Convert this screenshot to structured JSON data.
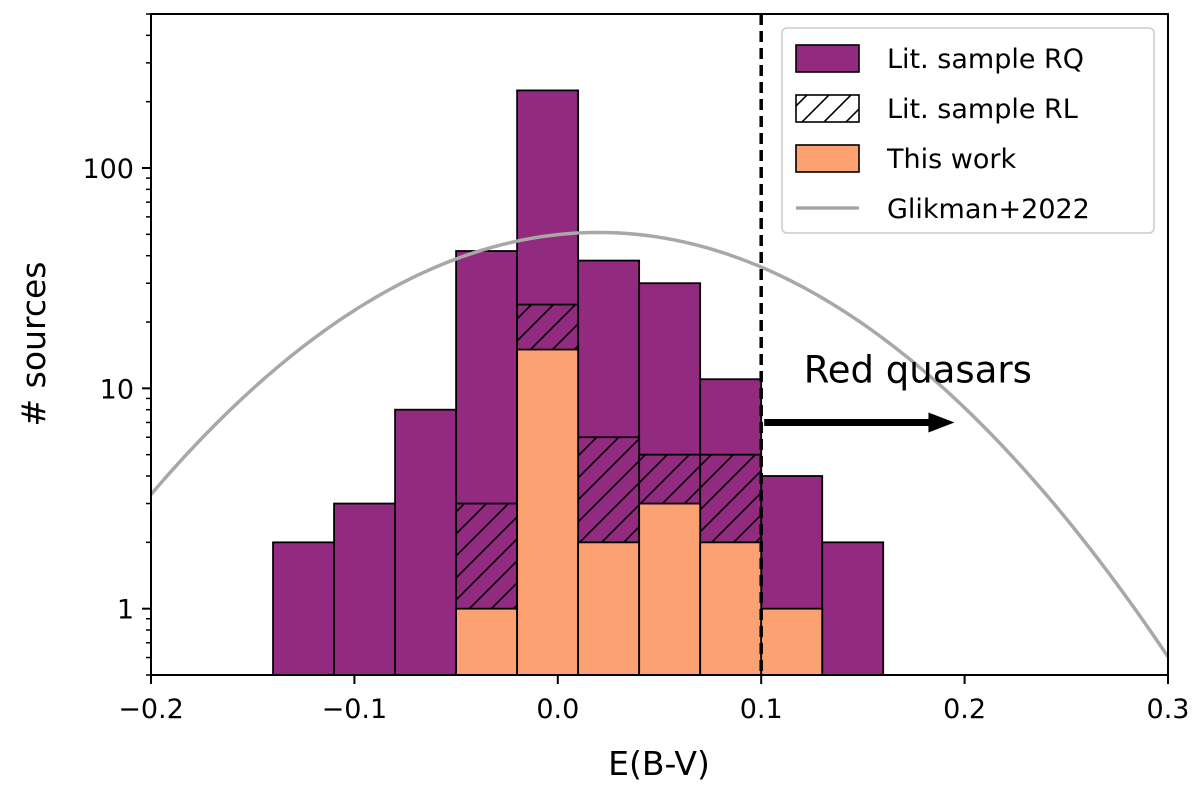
{
  "chart_data": {
    "type": "bar",
    "subtype": "stacked-histogram-log",
    "xlabel": "E(B-V)",
    "ylabel": "# sources",
    "xlim": [
      -0.2,
      0.3
    ],
    "ylim": [
      0.5,
      500
    ],
    "yscale": "log",
    "x_ticks": [
      -0.2,
      -0.1,
      0.0,
      0.1,
      0.2,
      0.3
    ],
    "x_tick_labels": [
      "−0.2",
      "−0.1",
      "0.0",
      "0.1",
      "0.2",
      "0.3"
    ],
    "y_ticks": [
      1,
      10,
      100
    ],
    "y_tick_labels": [
      "1",
      "10",
      "100"
    ],
    "bin_edges": [
      -0.14,
      -0.11,
      -0.08,
      -0.05,
      -0.02,
      0.01,
      0.04,
      0.07,
      0.1,
      0.13,
      0.16
    ],
    "series": [
      {
        "name": "Lit. sample RQ",
        "color": "#922b80",
        "hatch": false,
        "values": [
          2,
          3,
          8,
          42,
          225,
          38,
          30,
          11,
          4,
          2
        ]
      },
      {
        "name": "Lit. sample RL",
        "color": "#922b80",
        "hatch": true,
        "values": [
          null,
          null,
          null,
          3,
          24,
          6,
          5,
          5,
          null,
          null
        ]
      },
      {
        "name": "This work",
        "color": "#fca172",
        "hatch": false,
        "values": [
          null,
          null,
          null,
          1,
          15,
          2,
          3,
          2,
          1,
          null
        ]
      }
    ],
    "curve": {
      "name": "Glikman+2022",
      "color": "#a8a8a8",
      "type": "log-parabola",
      "peak_x": 0.02,
      "peak_y": 51,
      "y_at_x_min": 3.3,
      "x_range": [
        -0.2,
        0.3
      ]
    },
    "threshold": {
      "x": 0.1,
      "style": "dashed"
    },
    "annotation": {
      "text": "Red quasars",
      "arrow_from": [
        0.1,
        7
      ],
      "arrow_to": [
        0.195,
        7
      ]
    },
    "legend_position": "top-right"
  }
}
